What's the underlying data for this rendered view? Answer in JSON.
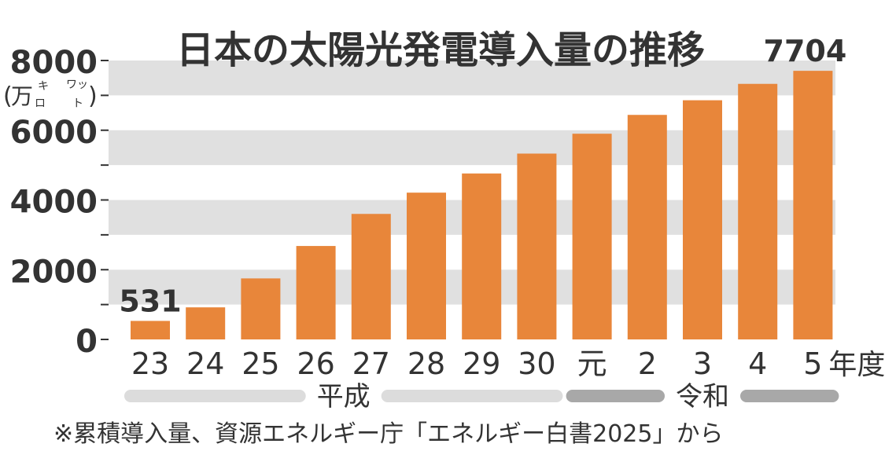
{
  "chart_data": {
    "type": "bar",
    "title": "日本の太陽光発電導入量の推移",
    "unit": {
      "open": "(",
      "main": "万",
      "kana_top": "キ",
      "kana_bottom": "ロ",
      "kana_top2": "ワッ",
      "kana_bottom2": "ト",
      "close": ")"
    },
    "categories": [
      "23",
      "24",
      "25",
      "26",
      "27",
      "28",
      "29",
      "30",
      "元",
      "2",
      "3",
      "4",
      "5"
    ],
    "x_suffix": "年度",
    "values": [
      531,
      920,
      1750,
      2680,
      3600,
      4210,
      4760,
      5330,
      5900,
      6440,
      6860,
      7330,
      7704
    ],
    "data_labels": [
      {
        "index": 0,
        "text": "531"
      },
      {
        "index": 12,
        "text": "7704"
      }
    ],
    "y_ticks": [
      "0",
      "2000",
      "4000",
      "6000",
      "8000"
    ],
    "ylim": [
      0,
      8000
    ],
    "grid": "alternating horizontal bands",
    "bar_color": "#e8863a",
    "band_color": "#e0e0e0",
    "eras": [
      {
        "label": "平成",
        "start_index": 0,
        "end_index": 7,
        "color": "#dcdcdc"
      },
      {
        "label": "令和",
        "start_index": 8,
        "end_index": 12,
        "color": "#a8a8a8"
      }
    ],
    "source": "※累積導入量、資源エネルギー庁「エネルギー白書2025」から"
  }
}
